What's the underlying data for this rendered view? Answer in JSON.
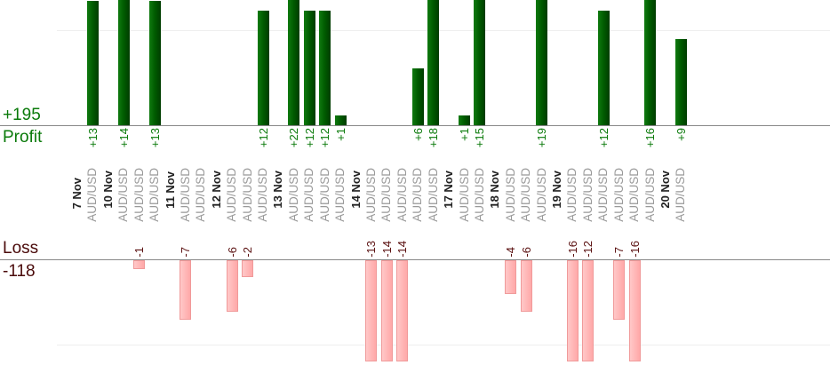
{
  "labels": {
    "profit_total": "+195",
    "profit": "Profit",
    "loss": "Loss",
    "loss_total": "-118"
  },
  "colors": {
    "profit": "#006400",
    "loss": "#ffb0b0",
    "profit_text": "#0a7a0a",
    "loss_text": "#5a1010"
  },
  "chart_data": {
    "type": "bar",
    "title": "",
    "slots": [
      {
        "date": "7 Nov"
      },
      {
        "symbol": "AUD/USD",
        "value": 13,
        "label": "+13"
      },
      {
        "date": "10 Nov"
      },
      {
        "symbol": "AUD/USD",
        "value": 14,
        "label": "+14"
      },
      {
        "symbol": "AUD/USD",
        "value": -1,
        "label": "-1"
      },
      {
        "symbol": "AUD/USD",
        "value": 13,
        "label": "+13"
      },
      {
        "date": "11 Nov"
      },
      {
        "symbol": "AUD/USD",
        "value": -7,
        "label": "-7"
      },
      {
        "symbol": "AUD/USD",
        "value": 0,
        "label": ""
      },
      {
        "date": "12 Nov"
      },
      {
        "symbol": "AUD/USD",
        "value": -6,
        "label": "-6"
      },
      {
        "symbol": "AUD/USD",
        "value": -2,
        "label": "-2"
      },
      {
        "symbol": "AUD/USD",
        "value": 12,
        "label": "+12"
      },
      {
        "date": "13 Nov"
      },
      {
        "symbol": "AUD/USD",
        "value": 22,
        "label": "+22"
      },
      {
        "symbol": "AUD/USD",
        "value": 12,
        "label": "+12"
      },
      {
        "symbol": "AUD/USD",
        "value": 12,
        "label": "+12"
      },
      {
        "symbol": "AUD/USD",
        "value": 1,
        "label": "+1"
      },
      {
        "date": "14 Nov"
      },
      {
        "symbol": "AUD/USD",
        "value": -13,
        "label": "-13"
      },
      {
        "symbol": "AUD/USD",
        "value": -14,
        "label": "-14"
      },
      {
        "symbol": "AUD/USD",
        "value": -14,
        "label": "-14"
      },
      {
        "symbol": "AUD/USD",
        "value": 6,
        "label": "+6"
      },
      {
        "symbol": "AUD/USD",
        "value": 18,
        "label": "+18"
      },
      {
        "date": "17 Nov"
      },
      {
        "symbol": "AUD/USD",
        "value": 1,
        "label": "+1"
      },
      {
        "symbol": "AUD/USD",
        "value": 15,
        "label": "+15"
      },
      {
        "date": "18 Nov"
      },
      {
        "symbol": "AUD/USD",
        "value": -4,
        "label": "-4"
      },
      {
        "symbol": "AUD/USD",
        "value": -6,
        "label": "-6"
      },
      {
        "symbol": "AUD/USD",
        "value": 19,
        "label": "+19"
      },
      {
        "date": "19 Nov"
      },
      {
        "symbol": "AUD/USD",
        "value": -16,
        "label": "-16"
      },
      {
        "symbol": "AUD/USD",
        "value": -12,
        "label": "-12"
      },
      {
        "symbol": "AUD/USD",
        "value": 12,
        "label": "+12"
      },
      {
        "symbol": "AUD/USD",
        "value": -7,
        "label": "-7"
      },
      {
        "symbol": "AUD/USD",
        "value": -16,
        "label": "-16"
      },
      {
        "symbol": "AUD/USD",
        "value": 16,
        "label": "+16"
      },
      {
        "date": "20 Nov"
      },
      {
        "symbol": "AUD/USD",
        "value": 9,
        "label": "+9"
      }
    ],
    "totals": {
      "profit": 195,
      "loss": -118
    }
  }
}
